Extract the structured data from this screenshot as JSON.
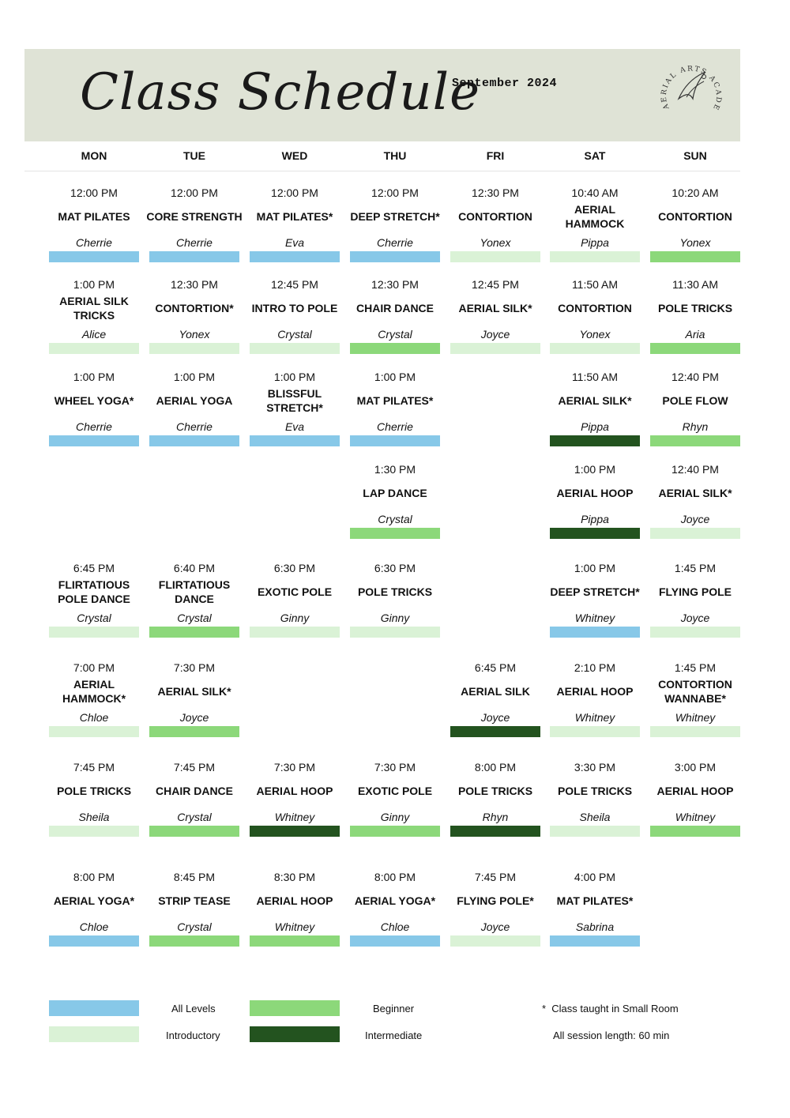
{
  "header": {
    "title": "Class Schedule",
    "month": "September 2024",
    "logo_text": "AERIAL ARTS ACADEMY"
  },
  "levels": {
    "all": "#87c8e8",
    "intro": "#daf2d6",
    "beginner": "#8cd87a",
    "intermediate": "#23531f"
  },
  "days": [
    "MON",
    "TUE",
    "WED",
    "THU",
    "FRI",
    "SAT",
    "SUN"
  ],
  "classes": [
    {
      "day": 0,
      "row": 0,
      "time": "12:00 PM",
      "name": "MAT PILATES",
      "instructor": "Cherrie",
      "level": "all"
    },
    {
      "day": 1,
      "row": 0,
      "time": "12:00 PM",
      "name": "CORE STRENGTH",
      "instructor": "Cherrie",
      "level": "all"
    },
    {
      "day": 2,
      "row": 0,
      "time": "12:00 PM",
      "name": "MAT PILATES*",
      "instructor": "Eva",
      "level": "all"
    },
    {
      "day": 3,
      "row": 0,
      "time": "12:00 PM",
      "name": "DEEP STRETCH*",
      "instructor": "Cherrie",
      "level": "all"
    },
    {
      "day": 4,
      "row": 0,
      "time": "12:30 PM",
      "name": "CONTORTION",
      "instructor": "Yonex",
      "level": "intro"
    },
    {
      "day": 5,
      "row": 0,
      "time": "10:40 AM",
      "name": "AERIAL HAMMOCK",
      "instructor": "Pippa",
      "level": "intro"
    },
    {
      "day": 6,
      "row": 0,
      "time": "10:20 AM",
      "name": "CONTORTION",
      "instructor": "Yonex",
      "level": "beginner"
    },
    {
      "day": 0,
      "row": 1,
      "time": "1:00 PM",
      "name": "AERIAL SILK TRICKS",
      "instructor": "Alice",
      "level": "intro"
    },
    {
      "day": 1,
      "row": 1,
      "time": "12:30 PM",
      "name": "CONTORTION*",
      "instructor": "Yonex",
      "level": "intro"
    },
    {
      "day": 2,
      "row": 1,
      "time": "12:45 PM",
      "name": "INTRO TO POLE",
      "instructor": "Crystal",
      "level": "intro"
    },
    {
      "day": 3,
      "row": 1,
      "time": "12:30 PM",
      "name": "CHAIR DANCE",
      "instructor": "Crystal",
      "level": "beginner"
    },
    {
      "day": 4,
      "row": 1,
      "time": "12:45 PM",
      "name": "AERIAL SILK*",
      "instructor": "Joyce",
      "level": "intro"
    },
    {
      "day": 5,
      "row": 1,
      "time": "11:50 AM",
      "name": "CONTORTION",
      "instructor": "Yonex",
      "level": "intro"
    },
    {
      "day": 6,
      "row": 1,
      "time": "11:30 AM",
      "name": "POLE  TRICKS",
      "instructor": "Aria",
      "level": "beginner"
    },
    {
      "day": 0,
      "row": 2,
      "time": "1:00 PM",
      "name": "WHEEL YOGA*",
      "instructor": "Cherrie",
      "level": "all"
    },
    {
      "day": 1,
      "row": 2,
      "time": "1:00 PM",
      "name": "AERIAL YOGA",
      "instructor": "Cherrie",
      "level": "all"
    },
    {
      "day": 2,
      "row": 2,
      "time": "1:00 PM",
      "name": "BLISSFUL STRETCH*",
      "instructor": "Eva",
      "level": "all"
    },
    {
      "day": 3,
      "row": 2,
      "time": "1:00 PM",
      "name": "MAT PILATES*",
      "instructor": "Cherrie",
      "level": "all"
    },
    {
      "day": 5,
      "row": 2,
      "time": "11:50 AM",
      "name": "AERIAL SILK*",
      "instructor": "Pippa",
      "level": "intermediate"
    },
    {
      "day": 6,
      "row": 2,
      "time": "12:40 PM",
      "name": "POLE FLOW",
      "instructor": "Rhyn",
      "level": "beginner"
    },
    {
      "day": 3,
      "row": 3,
      "time": "1:30 PM",
      "name": "LAP DANCE",
      "instructor": "Crystal",
      "level": "beginner"
    },
    {
      "day": 5,
      "row": 3,
      "time": "1:00 PM",
      "name": "AERIAL HOOP",
      "instructor": "Pippa",
      "level": "intermediate"
    },
    {
      "day": 6,
      "row": 3,
      "time": "12:40 PM",
      "name": "AERIAL SILK*",
      "instructor": "Joyce",
      "level": "intro"
    },
    {
      "day": 0,
      "row": 4,
      "time": "6:45 PM",
      "name": "FLIRTATIOUS POLE DANCE",
      "instructor": "Crystal",
      "level": "intro"
    },
    {
      "day": 1,
      "row": 4,
      "time": "6:40 PM",
      "name": "FLIRTATIOUS DANCE",
      "instructor": "Crystal",
      "level": "beginner"
    },
    {
      "day": 2,
      "row": 4,
      "time": "6:30 PM",
      "name": "EXOTIC POLE",
      "instructor": "Ginny",
      "level": "intro"
    },
    {
      "day": 3,
      "row": 4,
      "time": "6:30 PM",
      "name": "POLE  TRICKS",
      "instructor": "Ginny",
      "level": "intro"
    },
    {
      "day": 5,
      "row": 4,
      "time": "1:00 PM",
      "name": "DEEP STRETCH*",
      "instructor": "Whitney",
      "level": "all"
    },
    {
      "day": 6,
      "row": 4,
      "time": "1:45 PM",
      "name": "FLYING POLE",
      "instructor": "Joyce",
      "level": "intro"
    },
    {
      "day": 0,
      "row": 5,
      "time": "7:00 PM",
      "name": "AERIAL HAMMOCK*",
      "instructor": "Chloe",
      "level": "intro"
    },
    {
      "day": 1,
      "row": 5,
      "time": "7:30 PM",
      "name": "AERIAL SILK*",
      "instructor": "Joyce",
      "level": "beginner"
    },
    {
      "day": 4,
      "row": 5,
      "time": "6:45 PM",
      "name": "AERIAL SILK",
      "instructor": "Joyce",
      "level": "intermediate"
    },
    {
      "day": 5,
      "row": 5,
      "time": "2:10 PM",
      "name": "AERIAL HOOP",
      "instructor": "Whitney",
      "level": "intro"
    },
    {
      "day": 6,
      "row": 5,
      "time": "1:45 PM",
      "name": "CONTORTION WANNABE*",
      "instructor": "Whitney",
      "level": "intro"
    },
    {
      "day": 0,
      "row": 6,
      "time": "7:45 PM",
      "name": "POLE  TRICKS",
      "instructor": "Sheila",
      "level": "intro"
    },
    {
      "day": 1,
      "row": 6,
      "time": "7:45 PM",
      "name": "CHAIR DANCE",
      "instructor": "Crystal",
      "level": "beginner"
    },
    {
      "day": 2,
      "row": 6,
      "time": "7:30 PM",
      "name": "AERIAL HOOP",
      "instructor": "Whitney",
      "level": "intermediate"
    },
    {
      "day": 3,
      "row": 6,
      "time": "7:30 PM",
      "name": "EXOTIC POLE",
      "instructor": "Ginny",
      "level": "beginner"
    },
    {
      "day": 4,
      "row": 6,
      "time": "8:00 PM",
      "name": "POLE TRICKS",
      "instructor": "Rhyn",
      "level": "intermediate"
    },
    {
      "day": 5,
      "row": 6,
      "time": "3:30 PM",
      "name": "POLE  TRICKS",
      "instructor": "Sheila",
      "level": "intro"
    },
    {
      "day": 6,
      "row": 6,
      "time": "3:00 PM",
      "name": "AERIAL HOOP",
      "instructor": "Whitney",
      "level": "beginner"
    },
    {
      "day": 0,
      "row": 7,
      "time": "8:00 PM",
      "name": "AERIAL YOGA*",
      "instructor": "Chloe",
      "level": "all"
    },
    {
      "day": 1,
      "row": 7,
      "time": "8:45 PM",
      "name": "STRIP TEASE",
      "instructor": "Crystal",
      "level": "beginner"
    },
    {
      "day": 2,
      "row": 7,
      "time": "8:30 PM",
      "name": "AERIAL HOOP",
      "instructor": "Whitney",
      "level": "beginner"
    },
    {
      "day": 3,
      "row": 7,
      "time": "8:00 PM",
      "name": "AERIAL YOGA*",
      "instructor": "Chloe",
      "level": "all"
    },
    {
      "day": 4,
      "row": 7,
      "time": "7:45 PM",
      "name": "FLYING POLE*",
      "instructor": "Joyce",
      "level": "intro"
    },
    {
      "day": 5,
      "row": 7,
      "time": "4:00 PM",
      "name": "MAT PILATES*",
      "instructor": "Sabrina",
      "level": "all"
    }
  ],
  "legend": {
    "all_levels": "All Levels",
    "introductory": "Introductory",
    "beginner": "Beginner",
    "intermediate": "Intermediate",
    "note_small_room": "*  Class taught in Small Room",
    "note_session": "All session length: 60 min"
  }
}
